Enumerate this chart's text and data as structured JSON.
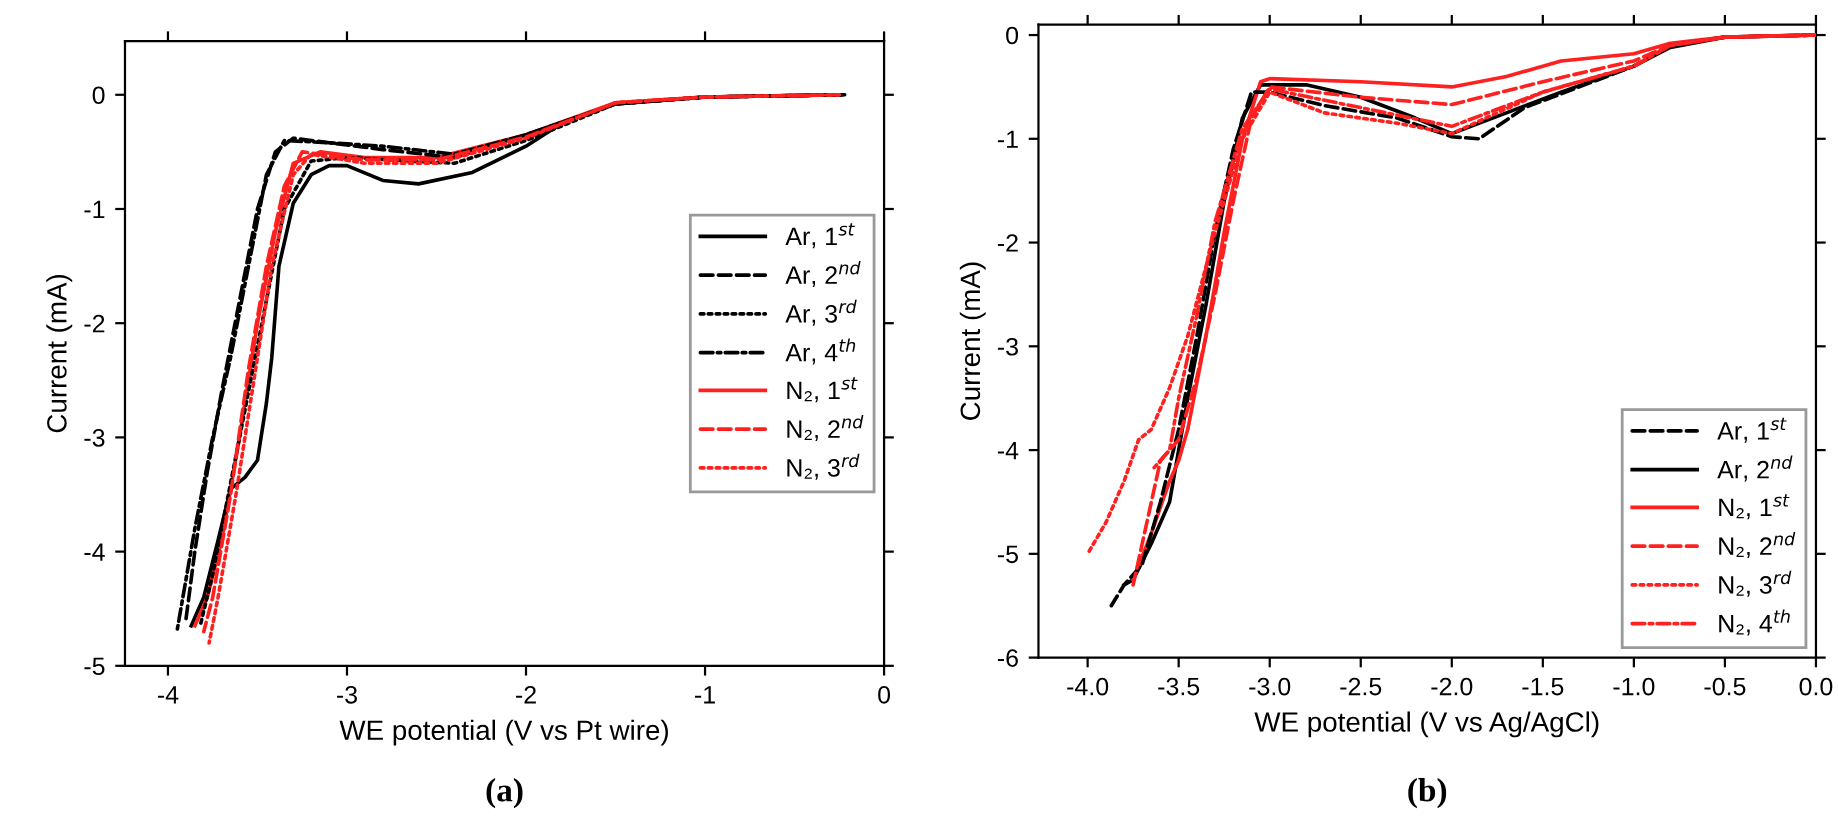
{
  "chart_data": [
    {
      "type": "line",
      "xlabel": "WE potential (V vs Pt wire)",
      "ylabel": "Current (mA)",
      "annotations": [
        "(a)"
      ],
      "xlim": [
        -4.24,
        0
      ],
      "xticks": [
        -4,
        -3,
        -2,
        -1,
        0
      ],
      "ylim": [
        -5,
        0.47
      ],
      "yticks": [
        -5,
        -4,
        -3,
        -2,
        -1,
        0
      ],
      "legend": "right",
      "grid": false,
      "series": [
        {
          "name": "Ar, 1$^{st}$",
          "color": "#000000",
          "line_style": "solid",
          "x": [
            -0.25,
            -1,
            -1.5,
            -1.8,
            -2.0,
            -2.3,
            -2.6,
            -2.8,
            -3.0,
            -3.1,
            -3.2,
            -3.3,
            -3.38,
            -3.42,
            -3.45,
            -3.5,
            -3.57,
            -3.65,
            -3.72,
            -3.8,
            -3.87
          ],
          "values": [
            0,
            -0.02,
            -0.08,
            -0.25,
            -0.45,
            -0.68,
            -0.78,
            -0.75,
            -0.62,
            -0.62,
            -0.7,
            -0.95,
            -1.5,
            -2.3,
            -2.7,
            -3.2,
            -3.35,
            -3.45,
            -3.9,
            -4.4,
            -4.65
          ]
        },
        {
          "name": "Ar, 2$^{nd}$",
          "color": "#000000",
          "line_style": "dashed",
          "x": [
            -0.22,
            -1,
            -1.5,
            -2,
            -2.4,
            -2.8,
            -3.1,
            -3.3,
            -3.4,
            -3.5,
            -3.6,
            -3.7,
            -3.78,
            -3.85,
            -3.9
          ],
          "values": [
            0,
            -0.02,
            -0.08,
            -0.35,
            -0.55,
            -0.48,
            -0.42,
            -0.38,
            -0.5,
            -1.0,
            -1.8,
            -2.6,
            -3.3,
            -4.0,
            -4.6
          ]
        },
        {
          "name": "Ar, 3$^{rd}$",
          "color": "#000000",
          "line_style": "dotted",
          "x": [
            -0.23,
            -1,
            -1.5,
            -2,
            -2.4,
            -3.0,
            -3.2,
            -3.35,
            -3.45,
            -3.55,
            -3.65,
            -3.75,
            -3.82
          ],
          "values": [
            0,
            -0.02,
            -0.08,
            -0.4,
            -0.6,
            -0.55,
            -0.58,
            -1.0,
            -1.8,
            -2.6,
            -3.4,
            -4.2,
            -4.65
          ]
        },
        {
          "name": "Ar, 4$^{th}$",
          "color": "#000000",
          "line_style": "dashdot",
          "x": [
            -0.24,
            -1,
            -1.5,
            -2,
            -2.4,
            -2.8,
            -3.1,
            -3.35,
            -3.45,
            -3.55,
            -3.65,
            -3.75,
            -3.85,
            -3.95
          ],
          "values": [
            0,
            -0.02,
            -0.08,
            -0.35,
            -0.52,
            -0.45,
            -0.42,
            -0.4,
            -0.7,
            -1.5,
            -2.3,
            -3.0,
            -3.8,
            -4.7
          ]
        },
        {
          "name": "N₂, 1$^{st}$",
          "color": "#ff2020",
          "line_style": "solid",
          "x": [
            -0.25,
            -1,
            -1.5,
            -2.0,
            -2.5,
            -2.9,
            -3.15,
            -3.3,
            -3.4,
            -3.5,
            -3.6,
            -3.7,
            -3.78,
            -3.85
          ],
          "values": [
            0,
            -0.02,
            -0.07,
            -0.35,
            -0.55,
            -0.55,
            -0.5,
            -0.6,
            -1.2,
            -2.0,
            -3.0,
            -3.9,
            -4.4,
            -4.65
          ]
        },
        {
          "name": "N₂, 2$^{nd}$",
          "color": "#ff2020",
          "line_style": "dashed",
          "x": [
            -0.25,
            -1,
            -1.5,
            -2.0,
            -2.5,
            -2.9,
            -3.25,
            -3.35,
            -3.45,
            -3.55,
            -3.65,
            -3.75,
            -3.8
          ],
          "values": [
            0,
            -0.02,
            -0.07,
            -0.37,
            -0.57,
            -0.57,
            -0.5,
            -0.8,
            -1.5,
            -2.4,
            -3.5,
            -4.4,
            -4.7
          ]
        },
        {
          "name": "N₂, 3$^{rd}$",
          "color": "#ff2020",
          "line_style": "dotted",
          "x": [
            -0.25,
            -1,
            -1.5,
            -2.0,
            -2.5,
            -2.9,
            -3.2,
            -3.3,
            -3.42,
            -3.52,
            -3.62,
            -3.72,
            -3.77
          ],
          "values": [
            0,
            -0.02,
            -0.07,
            -0.38,
            -0.6,
            -0.6,
            -0.52,
            -0.7,
            -1.5,
            -2.5,
            -3.5,
            -4.4,
            -4.8
          ]
        }
      ]
    },
    {
      "type": "line",
      "xlabel": "WE potential (V vs Ag/AgCl)",
      "ylabel": "Current (mA)",
      "annotations": [
        "(b)"
      ],
      "xlim": [
        -4.27,
        0
      ],
      "xticks": [
        {
          "value": -4,
          "label": "-4.0"
        },
        {
          "value": -3.5,
          "label": "-3.5"
        },
        {
          "value": -3,
          "label": "-3.0"
        },
        {
          "value": -2.5,
          "label": "-2.5"
        },
        {
          "value": -2,
          "label": "-2.0"
        },
        {
          "value": -1.5,
          "label": "-1.5"
        },
        {
          "value": -1,
          "label": "-1.0"
        },
        {
          "value": -0.5,
          "label": "-0.5"
        },
        {
          "value": 0,
          "label": "0.0"
        }
      ],
      "ylim": [
        -6,
        0.1
      ],
      "yticks": [
        -6,
        -5,
        -4,
        -3,
        -2,
        -1,
        0
      ],
      "legend": "bottom right",
      "grid": false,
      "series": [
        {
          "name": "Ar, 1$^{st}$",
          "color": "#000000",
          "line_style": "dashed",
          "x": [
            0,
            -0.5,
            -0.8,
            -1.0,
            -1.3,
            -1.6,
            -1.85,
            -2.0,
            -2.3,
            -2.7,
            -3.0,
            -3.1,
            -3.2,
            -3.3,
            -3.4,
            -3.5,
            -3.6,
            -3.7,
            -3.8,
            -3.87
          ],
          "values": [
            0,
            -0.02,
            -0.1,
            -0.3,
            -0.5,
            -0.7,
            -1.0,
            -0.98,
            -0.8,
            -0.68,
            -0.55,
            -0.55,
            -1.1,
            -1.9,
            -2.9,
            -3.8,
            -4.5,
            -5.1,
            -5.3,
            -5.5
          ]
        },
        {
          "name": "Ar, 2$^{nd}$",
          "color": "#000000",
          "line_style": "solid",
          "x": [
            0,
            -0.5,
            -0.8,
            -1.0,
            -1.4,
            -1.7,
            -2.0,
            -2.2,
            -2.5,
            -2.8,
            -3.05,
            -3.15,
            -3.25,
            -3.35,
            -3.45,
            -3.55,
            -3.65,
            -3.75,
            -3.8
          ],
          "values": [
            0,
            -0.02,
            -0.12,
            -0.3,
            -0.55,
            -0.75,
            -0.95,
            -0.8,
            -0.6,
            -0.48,
            -0.48,
            -0.8,
            -1.6,
            -2.6,
            -3.5,
            -4.5,
            -4.9,
            -5.25,
            -5.3
          ]
        },
        {
          "name": "N₂, 1$^{st}$",
          "color": "#ff2020",
          "line_style": "solid",
          "x": [
            0,
            -0.5,
            -0.8,
            -1.0,
            -1.4,
            -1.7,
            -2.0,
            -2.5,
            -3.0,
            -3.05,
            -3.15,
            -3.25,
            -3.35,
            -3.45,
            -3.5,
            -3.55,
            -3.65,
            -3.75
          ],
          "values": [
            0,
            -0.02,
            -0.08,
            -0.18,
            -0.25,
            -0.4,
            -0.5,
            -0.45,
            -0.42,
            -0.45,
            -1.0,
            -1.9,
            -2.9,
            -3.8,
            -4.1,
            -4.3,
            -4.8,
            -5.25
          ]
        },
        {
          "name": "N₂, 2$^{nd}$",
          "color": "#ff2020",
          "line_style": "dashed",
          "x": [
            0,
            -0.5,
            -0.8,
            -1.0,
            -1.5,
            -2.0,
            -2.5,
            -3.0,
            -3.1,
            -3.2,
            -3.3,
            -3.4,
            -3.5,
            -3.6,
            -3.7,
            -3.75
          ],
          "values": [
            0,
            -0.02,
            -0.1,
            -0.25,
            -0.45,
            -0.67,
            -0.6,
            -0.5,
            -0.8,
            -1.6,
            -2.5,
            -3.3,
            -3.9,
            -4.1,
            -4.9,
            -5.3
          ]
        },
        {
          "name": "N₂, 3$^{rd}$",
          "color": "#ff2020",
          "line_style": "dotted",
          "x": [
            0,
            -0.5,
            -0.8,
            -1.0,
            -1.5,
            -2.0,
            -2.3,
            -2.7,
            -3.0,
            -3.15,
            -3.3,
            -3.45,
            -3.55,
            -3.65,
            -3.72,
            -3.8,
            -3.9,
            -4.0
          ],
          "values": [
            0,
            -0.02,
            -0.1,
            -0.3,
            -0.55,
            -0.95,
            -0.85,
            -0.75,
            -0.55,
            -1.0,
            -1.9,
            -2.9,
            -3.4,
            -3.8,
            -3.9,
            -4.3,
            -4.7,
            -5.0
          ]
        },
        {
          "name": "N₂, 4$^{th}$",
          "color": "#ff2020",
          "line_style": "dashdot",
          "x": [
            0,
            -0.5,
            -0.8,
            -1.0,
            -1.5,
            -2.0,
            -2.5,
            -3.0,
            -3.15,
            -3.3,
            -3.4,
            -3.5,
            -3.55,
            -3.6,
            -3.65
          ],
          "values": [
            0,
            -0.02,
            -0.1,
            -0.3,
            -0.55,
            -0.88,
            -0.7,
            -0.52,
            -0.9,
            -1.8,
            -2.7,
            -3.5,
            -4.0,
            -4.1,
            -4.2
          ]
        }
      ]
    }
  ]
}
